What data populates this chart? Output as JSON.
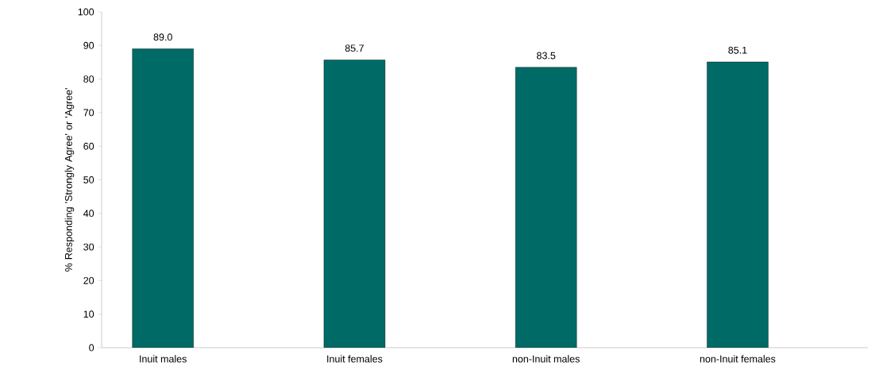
{
  "chart_data": {
    "type": "bar",
    "ylabel": "% Responding 'Strongly Agree' or 'Agree'",
    "categories": [
      "Inuit males",
      "Inuit females",
      "non-Inuit males",
      "non-Inuit females"
    ],
    "values": [
      89.0,
      85.7,
      83.5,
      85.1
    ],
    "value_labels": [
      "89.0",
      "85.7",
      "83.5",
      "85.1"
    ],
    "color": "#006b66",
    "ylim": [
      0,
      100
    ],
    "yticks": [
      0,
      10,
      20,
      30,
      40,
      50,
      60,
      70,
      80,
      90,
      100
    ],
    "grid": false
  }
}
